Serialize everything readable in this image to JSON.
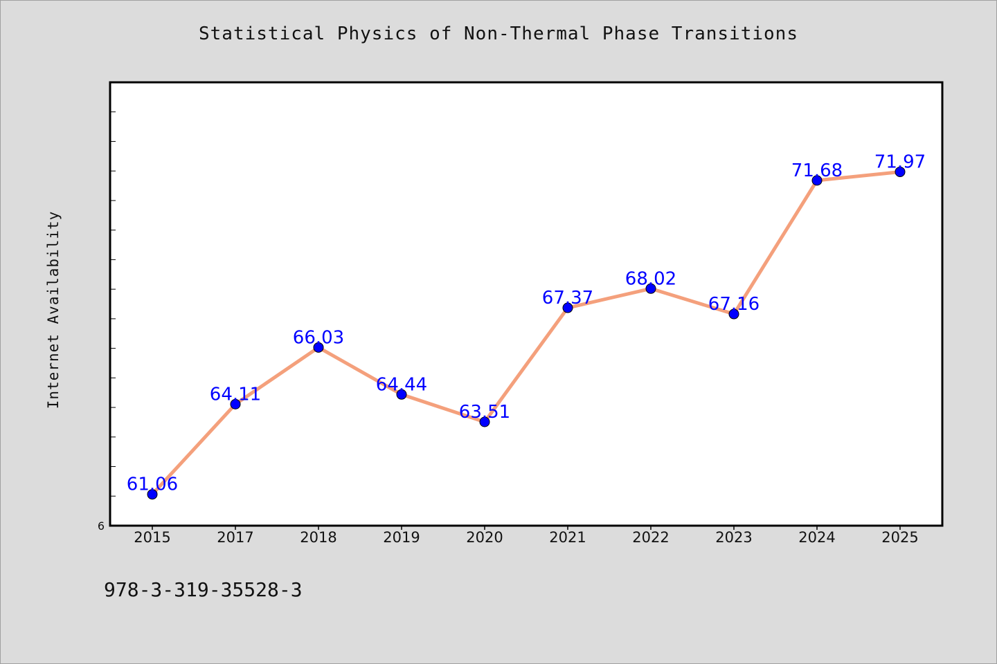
{
  "page": {
    "footer_text": "978-3-319-35528-3"
  },
  "chart_data": {
    "type": "line",
    "title": "Statistical Physics of Non-Thermal Phase Transitions",
    "xlabel": "",
    "ylabel": "Internet Availability",
    "categories": [
      "2015",
      "2017",
      "2018",
      "2019",
      "2020",
      "2021",
      "2022",
      "2023",
      "2024",
      "2025"
    ],
    "series": [
      {
        "values": [
          61.06,
          64.11,
          66.03,
          64.44,
          63.51,
          67.37,
          68.02,
          67.16,
          71.68,
          71.97
        ],
        "data_labels": [
          "61.06",
          "64.11",
          "66.03",
          "64.44",
          "63.51",
          "67.37",
          "68.02",
          "67.16",
          "71.68",
          "71.97"
        ],
        "line_color": "#f4a07c",
        "marker_color": "#0000ff"
      }
    ],
    "ylim": [
      60,
      75
    ],
    "y_tick_step": 1,
    "y_min_label": "6",
    "grid": false,
    "legend": "none",
    "colors": {
      "plot_background": "#ffffff",
      "figure_background": "#dcdcdc",
      "data_label": "#0000ff"
    }
  }
}
